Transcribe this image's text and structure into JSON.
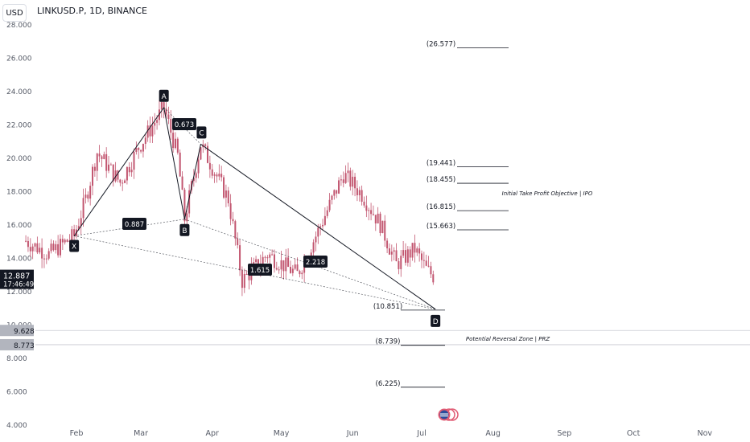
{
  "header": {
    "currency": "USD",
    "symbol": "LINKUSD.P, 1D, BINANCE"
  },
  "price_labels": {
    "last_price": "12.887",
    "countdown": "17:46:49",
    "level_a": "9.628",
    "level_b": "8.773"
  },
  "colors": {
    "up": "#26a69a",
    "down": "#e05a73",
    "candle_body": "#c25670",
    "pattern_line": "#131722",
    "label_bg": "#131722",
    "label_text": "#ffffff",
    "axis_text": "#555a66",
    "price_label_dark": "#131722",
    "price_label_grey": "#b2b5be"
  },
  "chart_data": {
    "type": "candlestick",
    "title": "LINKUSD.P, 1D, BINANCE",
    "ylim": [
      4,
      28.7
    ],
    "y_ticks": [
      "28.000",
      "26.000",
      "24.000",
      "22.000",
      "20.000",
      "18.000",
      "16.000",
      "14.000",
      "12.000",
      "10.000",
      "8.000",
      "6.000",
      "4.000"
    ],
    "x_ticks": [
      "Feb",
      "Mar",
      "Apr",
      "May",
      "Jun",
      "Jul",
      "Aug",
      "Sep",
      "Oct",
      "Nov"
    ],
    "candles_close_estimate": [
      {
        "x": "Jan 10",
        "y": 15.0
      },
      {
        "x": "Jan 20",
        "y": 14.2
      },
      {
        "x": "Jan 31",
        "y": 15.3
      },
      {
        "x": "Feb 5",
        "y": 17.5
      },
      {
        "x": "Feb 10",
        "y": 20.3
      },
      {
        "x": "Feb 20",
        "y": 18.5
      },
      {
        "x": "Feb 28",
        "y": 20.6
      },
      {
        "x": "Mar 11",
        "y": 23.0
      },
      {
        "x": "Mar 17",
        "y": 20.1
      },
      {
        "x": "Mar 20",
        "y": 16.3
      },
      {
        "x": "Mar 27",
        "y": 20.8
      },
      {
        "x": "Apr 8",
        "y": 17.5
      },
      {
        "x": "Apr 14",
        "y": 12.6
      },
      {
        "x": "Apr 25",
        "y": 14.2
      },
      {
        "x": "May 8",
        "y": 13.0
      },
      {
        "x": "May 16",
        "y": 15.3
      },
      {
        "x": "May 28",
        "y": 19.0
      },
      {
        "x": "Jun 5",
        "y": 17.8
      },
      {
        "x": "Jun 13",
        "y": 16.0
      },
      {
        "x": "Jun 20",
        "y": 13.6
      },
      {
        "x": "Jun 28",
        "y": 14.5
      },
      {
        "x": "Jul 3",
        "y": 13.3
      },
      {
        "x": "Jul 6",
        "y": 12.9
      }
    ],
    "harmonic_points": [
      {
        "label": "X",
        "x": "Jan 31",
        "y": 15.3
      },
      {
        "label": "A",
        "x": "Mar 11",
        "y": 23.0
      },
      {
        "label": "B",
        "x": "Mar 20",
        "y": 16.3
      },
      {
        "label": "C",
        "x": "Mar 27",
        "y": 20.8
      },
      {
        "label": "D",
        "x": "Jul 7",
        "y": 10.9
      }
    ],
    "ratio_labels": [
      "0.673",
      "0.887",
      "1.615",
      "2.218"
    ],
    "level_annotations": [
      "(26.577)",
      "(19.441)",
      "(18.455)",
      "(16.815)",
      "(15.663)",
      "(10.851)",
      "(8.739)",
      "(6.225)"
    ],
    "zone_labels": [
      "Initial Take Profit Objective | IPO",
      "Potential Reversal Zone | PRZ"
    ]
  }
}
